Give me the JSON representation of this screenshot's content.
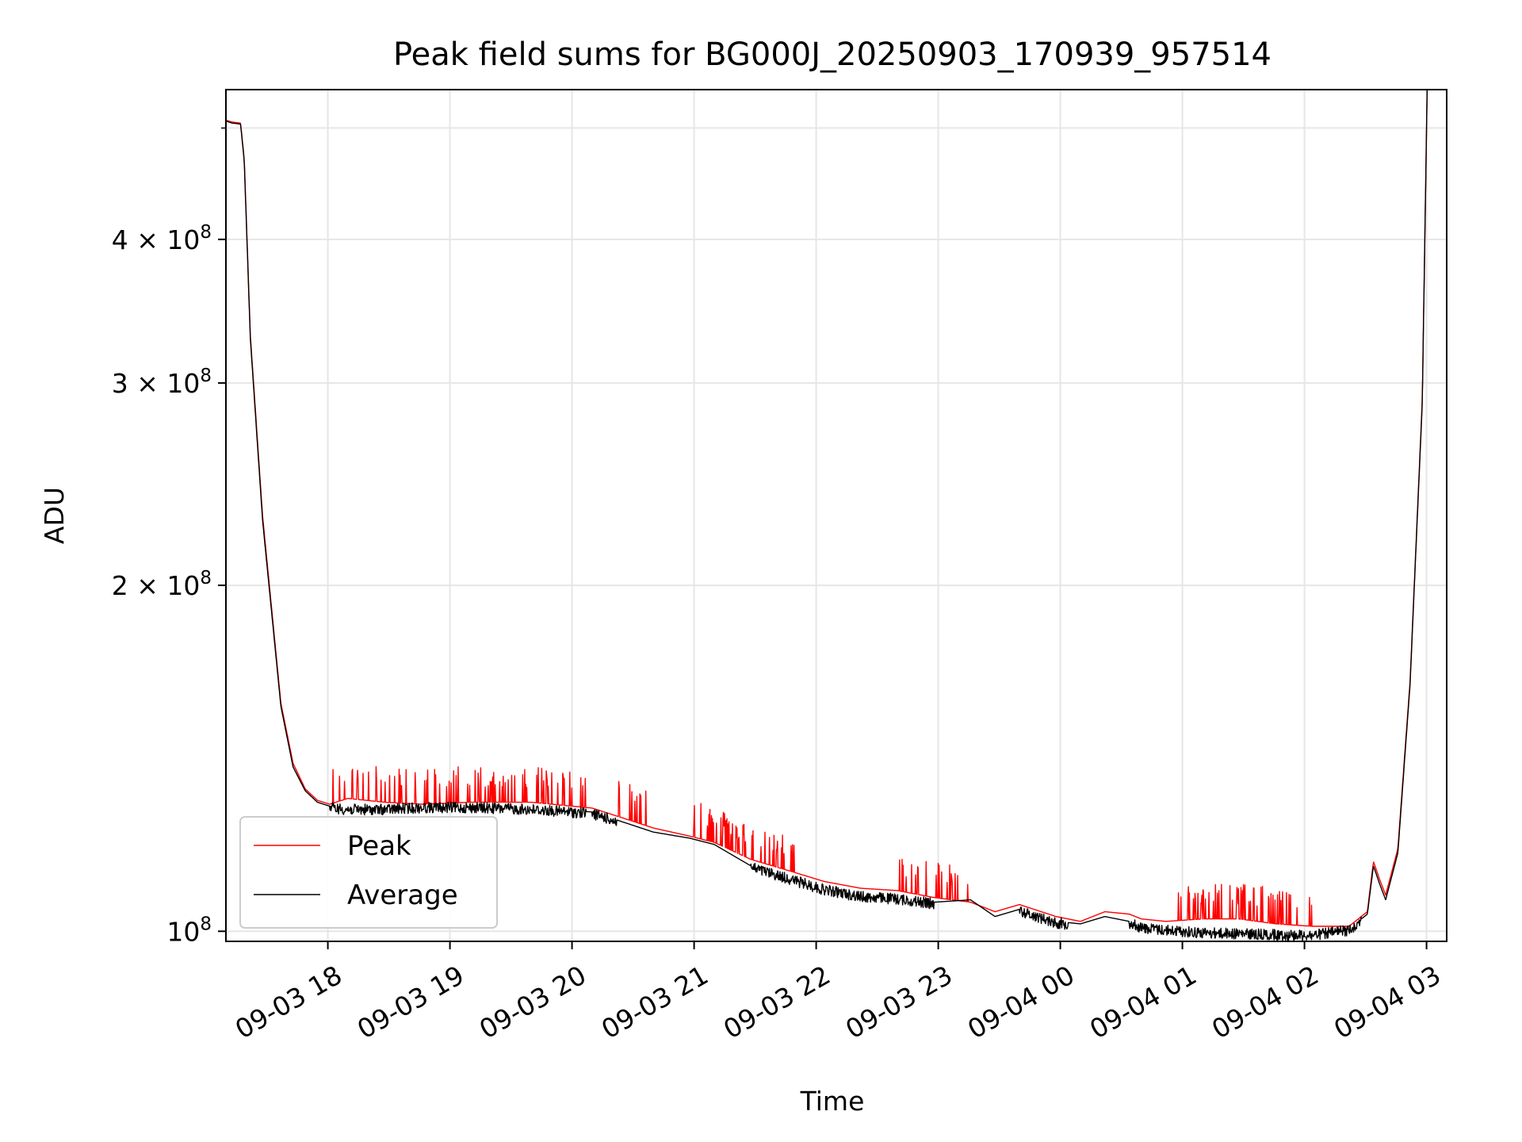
{
  "chart_data": {
    "type": "line",
    "title": "Peak field sums for BG000J_20250903_170939_957514",
    "xlabel": "Time",
    "ylabel": "ADU",
    "yscale": "log",
    "ylim": [
      98000000,
      540000000
    ],
    "xlim_hours_after_start": [
      0,
      10.0
    ],
    "grid": true,
    "legend_position": "lower-left",
    "x_tick_labels": [
      "09-03 18",
      "09-03 19",
      "09-03 20",
      "09-03 21",
      "09-03 22",
      "09-03 23",
      "09-04 00",
      "09-04 01",
      "09-04 02",
      "09-04 03"
    ],
    "x_ticks_hours_after_start": [
      0.835,
      1.835,
      2.835,
      3.835,
      4.835,
      5.835,
      6.835,
      7.835,
      8.835,
      9.835
    ],
    "y_ticks": [
      {
        "value": 100000000,
        "mantissa": "10",
        "exponent": "8"
      },
      {
        "value": 200000000,
        "mantissa": "2 × 10",
        "exponent": "8"
      },
      {
        "value": 300000000,
        "mantissa": "3 × 10",
        "exponent": "8"
      },
      {
        "value": 400000000,
        "mantissa": "4 × 10",
        "exponent": "8"
      }
    ],
    "y_minor_ticks": [
      500000000
    ],
    "series": [
      {
        "name": "Peak",
        "color": "#ff0000",
        "x_hours_after_start": [
          0,
          0.05,
          0.12,
          0.15,
          0.2,
          0.3,
          0.45,
          0.55,
          0.65,
          0.75,
          0.85,
          1.0,
          1.3,
          1.6,
          2.0,
          2.5,
          3.0,
          3.3,
          3.5,
          3.8,
          4.0,
          4.3,
          4.6,
          4.9,
          5.2,
          5.5,
          5.8,
          6.1,
          6.3,
          6.5,
          6.8,
          7.0,
          7.2,
          7.4,
          7.5,
          7.7,
          8.0,
          8.3,
          8.6,
          8.9,
          9.2,
          9.3,
          9.35,
          9.4,
          9.45,
          9.5,
          9.6,
          9.7,
          9.8,
          9.84
        ],
        "values": [
          508000000,
          506000000,
          505000000,
          470000000,
          330000000,
          230000000,
          158000000,
          140000000,
          133000000,
          130000000,
          129000000,
          130500000,
          129500000,
          129000000,
          129500000,
          129500000,
          128000000,
          125000000,
          123000000,
          121000000,
          119500000,
          115500000,
          113000000,
          110500000,
          109000000,
          108500000,
          107000000,
          106000000,
          104000000,
          105500000,
          103000000,
          102000000,
          104000000,
          103500000,
          102500000,
          102000000,
          102500000,
          102500000,
          101500000,
          101000000,
          101000000,
          103000000,
          104000000,
          115000000,
          111000000,
          107500000,
          118000000,
          165000000,
          290000000,
          540000000
        ],
        "spike_ranges_hours": [
          [
            0.85,
            2.95
          ],
          [
            3.2,
            3.45
          ],
          [
            3.8,
            4.7
          ],
          [
            5.5,
            6.1
          ],
          [
            7.8,
            8.9
          ]
        ]
      },
      {
        "name": "Average",
        "color": "#000000",
        "x_hours_after_start": [
          0,
          0.05,
          0.12,
          0.15,
          0.2,
          0.3,
          0.45,
          0.55,
          0.65,
          0.75,
          0.85,
          1.0,
          1.3,
          1.6,
          2.0,
          2.5,
          3.0,
          3.3,
          3.5,
          3.8,
          4.0,
          4.3,
          4.6,
          4.9,
          5.2,
          5.5,
          5.8,
          6.1,
          6.3,
          6.5,
          6.8,
          7.0,
          7.2,
          7.4,
          7.5,
          7.7,
          8.0,
          8.3,
          8.6,
          8.9,
          9.2,
          9.3,
          9.35,
          9.4,
          9.45,
          9.5,
          9.6,
          9.7,
          9.8,
          9.84
        ],
        "values": [
          507000000,
          505000000,
          504000000,
          468000000,
          328000000,
          228000000,
          157000000,
          139000000,
          132500000,
          129500000,
          128500000,
          128000000,
          128000000,
          128500000,
          128500000,
          128000000,
          127000000,
          124000000,
          122000000,
          120500000,
          119000000,
          114000000,
          111500000,
          109000000,
          107500000,
          107000000,
          106000000,
          106500000,
          103000000,
          104500000,
          102000000,
          101500000,
          103000000,
          102000000,
          101000000,
          100500000,
          100000000,
          99800000,
          99600000,
          99500000,
          100500000,
          102500000,
          103500000,
          114000000,
          110000000,
          106500000,
          117000000,
          164000000,
          288000000,
          540000000
        ],
        "noise_ranges_hours": [
          [
            0.85,
            2.95
          ],
          [
            3.0,
            3.2
          ],
          [
            4.3,
            5.8
          ],
          [
            6.5,
            6.9
          ],
          [
            7.4,
            9.3
          ]
        ]
      }
    ]
  }
}
